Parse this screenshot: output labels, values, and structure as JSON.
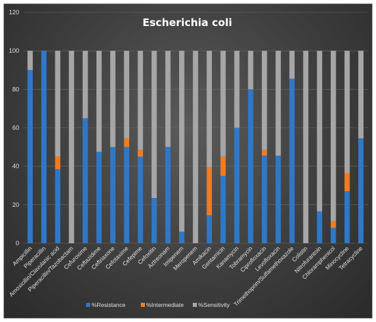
{
  "chart_data": {
    "type": "bar",
    "stacked": true,
    "title": "Escherichia coli",
    "xlabel": "",
    "ylabel": "",
    "ylim": [
      0,
      120
    ],
    "yticks": [
      0,
      20,
      40,
      60,
      80,
      100,
      120
    ],
    "grid": true,
    "legend_position": "bottom",
    "categories": [
      "Ampicillin",
      "Piperacillin",
      "Amoxicillin/Clavulanic acid",
      "Piperacillin/Tazobactam",
      "Cefuroxime",
      "Ceftazidime",
      "Ceftriaxone",
      "Cefotaxime",
      "Cefepime",
      "Cefoxitin",
      "Aztreonam",
      "Imipenem",
      "Meropenem",
      "Amikacin",
      "Gentamicin",
      "Kanamycin",
      "Tobramycin",
      "Ciprofloxacin",
      "Levofloxacin",
      "Trimethoprim/Sulfamethoxazole",
      "Colistin",
      "Nitrofurantoin",
      "Chloramphenicol",
      "Minocycline",
      "Tetracycline"
    ],
    "series": [
      {
        "name": "%Resistance",
        "color": "#2f78c8",
        "values": [
          90,
          100,
          38.5,
          0,
          65,
          47.5,
          50,
          50,
          45,
          23.5,
          50,
          6,
          0,
          14.5,
          35,
          60,
          80,
          45.5,
          45.5,
          85.5,
          0,
          16.5,
          8,
          27,
          54.5
        ]
      },
      {
        "name": "%Intermediate",
        "color": "#f07c22",
        "values": [
          0,
          0,
          6.5,
          0,
          0,
          0,
          0,
          4.5,
          3.5,
          0,
          0,
          0,
          0,
          25,
          10,
          0,
          0,
          3,
          0,
          0,
          0,
          0,
          3.5,
          9.5,
          0
        ]
      },
      {
        "name": "%Sensitivity",
        "color": "#a6a6a6",
        "values": [
          10,
          0,
          55,
          100,
          35,
          52.5,
          50,
          45.5,
          51.5,
          76.5,
          50,
          94,
          100,
          60.5,
          55,
          40,
          20,
          51.5,
          54.5,
          14.5,
          100,
          83.5,
          88.5,
          63.5,
          45.5
        ]
      }
    ]
  }
}
